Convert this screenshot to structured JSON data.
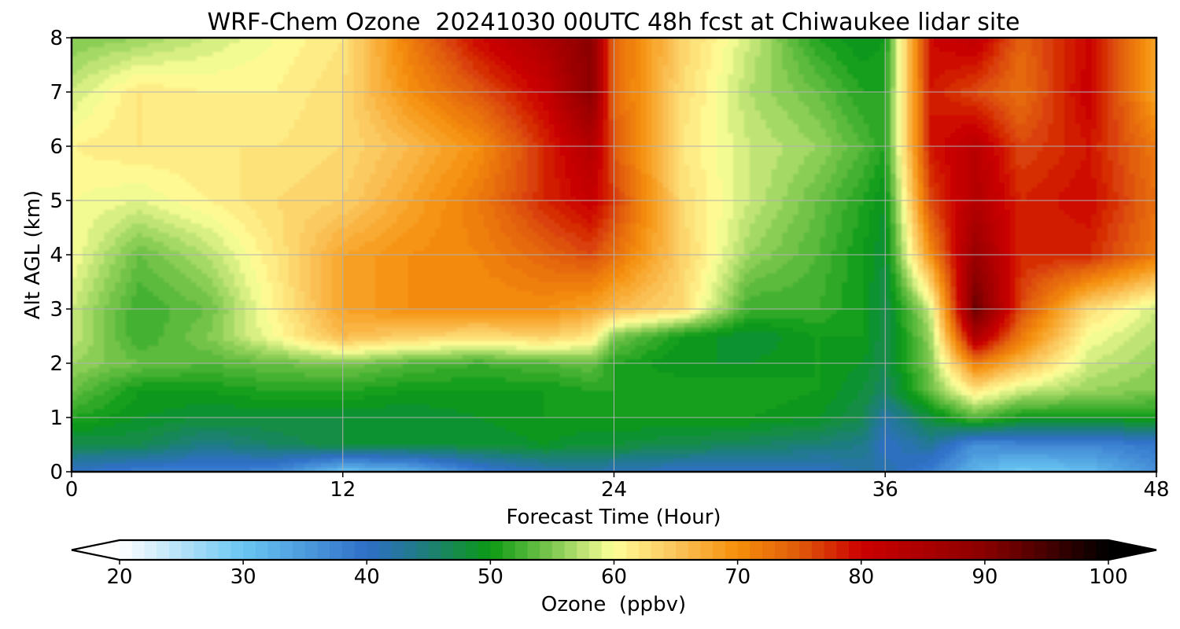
{
  "chart_data": {
    "type": "heatmap",
    "title": "WRF-Chem Ozone  20241030 00UTC 48h fcst at Chiwaukee lidar site",
    "xlabel": "Forecast Time (Hour)",
    "ylabel": "Alt AGL (km)",
    "xlim": [
      0,
      48
    ],
    "ylim": [
      0,
      8
    ],
    "xticks": [
      0,
      12,
      24,
      36,
      48
    ],
    "yticks": [
      0,
      1,
      2,
      3,
      4,
      5,
      6,
      7,
      8
    ],
    "grid": true,
    "x": [
      0,
      3,
      6,
      9,
      12,
      15,
      18,
      21,
      23,
      24,
      27,
      30,
      33,
      35,
      36,
      38,
      40,
      42,
      45,
      48
    ],
    "y": [
      0,
      0.5,
      1,
      1.5,
      2,
      2.5,
      3,
      4,
      5,
      6,
      7,
      8
    ],
    "z": [
      [
        40,
        38,
        38,
        37,
        30,
        32,
        38,
        41,
        42,
        41,
        40,
        40,
        40,
        42,
        42,
        38,
        32,
        29,
        31,
        36
      ],
      [
        47,
        47,
        44,
        46,
        48,
        48,
        48,
        49,
        48,
        48,
        47,
        46,
        45,
        44,
        40,
        43,
        36,
        37,
        37,
        39
      ],
      [
        51,
        49,
        48,
        48,
        48,
        48,
        49,
        50,
        50,
        50,
        50,
        50,
        49,
        47,
        42,
        48,
        53,
        50,
        50,
        50
      ],
      [
        54,
        50,
        50,
        51,
        51,
        50,
        50,
        50,
        51,
        51,
        51,
        51,
        50,
        48,
        46,
        54,
        62,
        58,
        56,
        55
      ],
      [
        56,
        54,
        53,
        54,
        55,
        53,
        52,
        53,
        54,
        51,
        49,
        49,
        50,
        49,
        47,
        55,
        72,
        66,
        58,
        56
      ],
      [
        58,
        52,
        55,
        60,
        66,
        64,
        63,
        64,
        62,
        55,
        50,
        48,
        50,
        50,
        47,
        56,
        85,
        72,
        60,
        57
      ],
      [
        58,
        52,
        54,
        61,
        68,
        70,
        70,
        70,
        68,
        66,
        63,
        52,
        52,
        50,
        47,
        58,
        93,
        76,
        63,
        58
      ],
      [
        60,
        54,
        57,
        62,
        68,
        70,
        71,
        74,
        76,
        73,
        64,
        56,
        53,
        50,
        48,
        70,
        88,
        78,
        78,
        72
      ],
      [
        60,
        59,
        61,
        63,
        64,
        68,
        72,
        78,
        81,
        77,
        63,
        58,
        54,
        51,
        49,
        76,
        84,
        78,
        80,
        73
      ],
      [
        61,
        62,
        62,
        62,
        63,
        66,
        70,
        78,
        84,
        75,
        62,
        58,
        56,
        53,
        51,
        79,
        83,
        76,
        79,
        72
      ],
      [
        58,
        62,
        61,
        61,
        63,
        70,
        75,
        81,
        90,
        74,
        63,
        57,
        54,
        51,
        51,
        79,
        76,
        73,
        81,
        68
      ],
      [
        55,
        56,
        58,
        60,
        62,
        72,
        80,
        85,
        90,
        74,
        64,
        58,
        51,
        49,
        50,
        80,
        82,
        74,
        80,
        68
      ]
    ]
  },
  "colorbar": {
    "label": "Ozone  (ppbv)",
    "min": 20,
    "max": 100,
    "step": 1,
    "ticks": [
      20,
      30,
      40,
      50,
      60,
      70,
      80,
      90,
      100
    ],
    "extend": "both",
    "stops": [
      {
        "v": 20,
        "c": "#ffffff"
      },
      {
        "v": 30,
        "c": "#6ac6f2"
      },
      {
        "v": 40,
        "c": "#2f6fc8"
      },
      {
        "v": 44,
        "c": "#217a8a"
      },
      {
        "v": 50,
        "c": "#0c9a14"
      },
      {
        "v": 55,
        "c": "#7ec850"
      },
      {
        "v": 60,
        "c": "#ffff99"
      },
      {
        "v": 65,
        "c": "#fbc45a"
      },
      {
        "v": 70,
        "c": "#f58f0a"
      },
      {
        "v": 75,
        "c": "#e05a0a"
      },
      {
        "v": 80,
        "c": "#cc0000"
      },
      {
        "v": 90,
        "c": "#8a0000"
      },
      {
        "v": 100,
        "c": "#000000"
      }
    ]
  }
}
